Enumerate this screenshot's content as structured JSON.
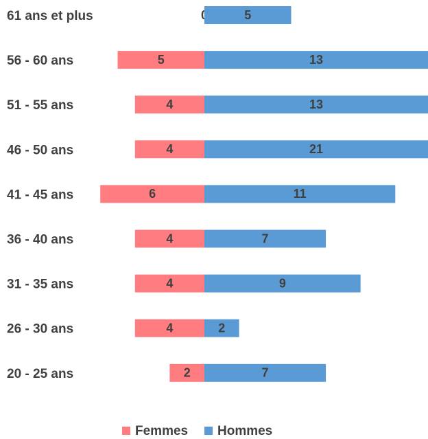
{
  "chart_data": {
    "type": "bar",
    "categories": [
      "61 ans et plus",
      "56 - 60 ans",
      "51 - 55 ans",
      "46 - 50 ans",
      "41 - 45 ans",
      "36 - 40 ans",
      "31 - 35 ans",
      "26 - 30 ans",
      "20 - 25 ans"
    ],
    "series": [
      {
        "name": "Femmes",
        "color": "#ff7c80",
        "values": [
          0,
          5,
          4,
          4,
          6,
          4,
          4,
          4,
          2
        ]
      },
      {
        "name": "Hommes",
        "color": "#5b9bd5",
        "values": [
          5,
          13,
          13,
          21,
          11,
          7,
          9,
          2,
          7
        ]
      }
    ]
  }
}
